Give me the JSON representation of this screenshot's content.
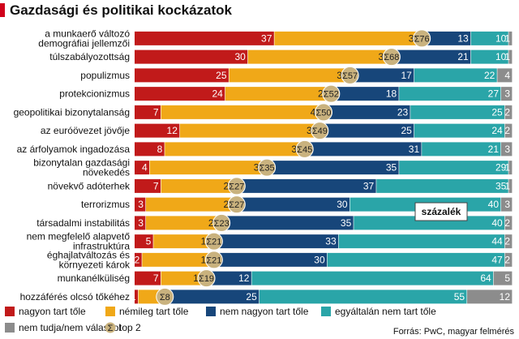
{
  "title": "Gazdasági és politikai kockázatok",
  "unit_label": "százalék",
  "source": "Forrás: PwC, magyar felmérés",
  "top2_symbol": "Σ",
  "top2_label": "top 2",
  "colors": {
    "nagyon": "#c11a1a",
    "nemileg": "#f0a818",
    "nem_nagyon": "#17467a",
    "egyaltalan": "#2aa5a8",
    "nem_tudja": "#8c8c8c",
    "top2_marker": "#c9b27e",
    "title_accent": "#d0021b"
  },
  "chart_data": {
    "type": "bar",
    "stacked": true,
    "orientation": "horizontal",
    "title": "Gazdasági és politikai kockázatok",
    "unit": "százalék",
    "categories": [
      [
        "a munkaerő változó",
        "demográfiai jellemzői"
      ],
      [
        "túlszabályozottság"
      ],
      [
        "populizmus"
      ],
      [
        "protekcionizmus"
      ],
      [
        "geopolitikai bizonytalanság"
      ],
      [
        "az euróövezet jövője"
      ],
      [
        "az árfolyamok ingadozása"
      ],
      [
        "bizonytalan gazdasági",
        "növekedés"
      ],
      [
        "növekvő adóterhek"
      ],
      [
        "terrorizmus"
      ],
      [
        "társadalmi instabilitás"
      ],
      [
        "nem megfelelő alapvető",
        "infrastruktúra"
      ],
      [
        "éghajlatváltozás és",
        "környezeti károk"
      ],
      [
        "munkanélküliség"
      ],
      [
        "hozzáférés olcsó tőkéhez"
      ]
    ],
    "series": [
      {
        "name": "nagyon tart tőle",
        "color_key": "nagyon",
        "values": [
          37,
          30,
          25,
          24,
          7,
          12,
          8,
          4,
          7,
          3,
          3,
          5,
          2,
          7,
          1
        ]
      },
      {
        "name": "némileg tart tőle",
        "color_key": "nemileg",
        "values": [
          39,
          38,
          32,
          28,
          43,
          37,
          37,
          31,
          20,
          24,
          20,
          16,
          19,
          12,
          7
        ]
      },
      {
        "name": "nem nagyon tart tőle",
        "color_key": "nem_nagyon",
        "values": [
          13,
          21,
          17,
          18,
          23,
          25,
          31,
          35,
          37,
          30,
          35,
          33,
          30,
          12,
          25
        ]
      },
      {
        "name": "egyáltalán nem tart tőle",
        "color_key": "egyaltalan",
        "values": [
          10,
          10,
          22,
          27,
          25,
          24,
          21,
          29,
          35,
          40,
          40,
          44,
          47,
          64,
          55
        ]
      },
      {
        "name": "nem tudja/nem válaszol",
        "color_key": "nem_tudja",
        "values": [
          1,
          1,
          4,
          3,
          2,
          2,
          3,
          1,
          1,
          3,
          2,
          2,
          2,
          5,
          12
        ]
      }
    ],
    "top2": [
      76,
      68,
      57,
      52,
      50,
      49,
      45,
      35,
      27,
      27,
      23,
      21,
      21,
      19,
      8
    ],
    "xlim": [
      0,
      100
    ],
    "legend": [
      [
        "nagyon tart tőle",
        "némileg tart tőle",
        "nem nagyon tart tőle",
        "egyáltalán nem tart tőle"
      ],
      [
        "nem tudja/nem válaszol",
        "top 2"
      ]
    ],
    "legend_position": "bottom",
    "grid": false
  }
}
